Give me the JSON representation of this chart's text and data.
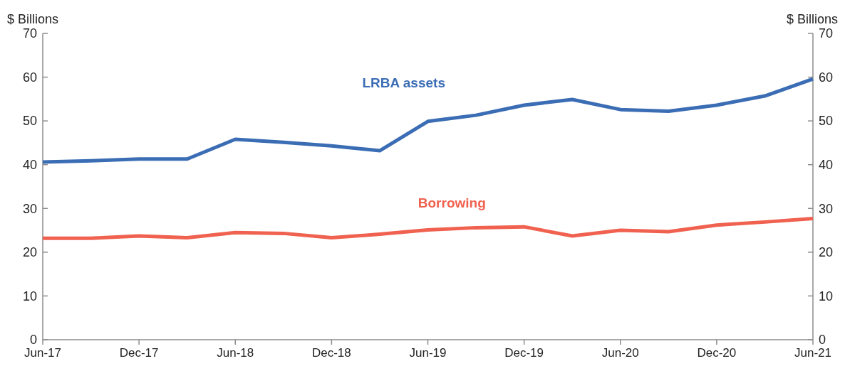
{
  "chart_data": {
    "type": "line",
    "ylabel": "$ Billions",
    "y2label": "$ Billions",
    "categories": [
      "Jun-17",
      null,
      "Dec-17",
      null,
      "Jun-18",
      null,
      "Dec-18",
      null,
      "Jun-19",
      null,
      "Dec-19",
      null,
      "Jun-20",
      null,
      "Dec-20",
      null,
      "Jun-21"
    ],
    "series": [
      {
        "name": "LRBA assets",
        "color": "#3b6db5",
        "values": [
          40.6,
          40.9,
          41.3,
          41.3,
          45.8,
          45.1,
          44.3,
          43.2,
          49.9,
          51.3,
          53.6,
          54.9,
          52.6,
          52.2,
          53.6,
          55.7,
          59.6
        ]
      },
      {
        "name": "Borrowing",
        "color": "#f0614f",
        "values": [
          23.2,
          23.2,
          23.7,
          23.3,
          24.5,
          24.3,
          23.3,
          24.1,
          25.1,
          25.6,
          25.8,
          23.7,
          25.0,
          24.7,
          26.2,
          26.9,
          27.7
        ]
      }
    ],
    "ylim": [
      0,
      70
    ],
    "yticks": [
      0,
      10,
      20,
      30,
      40,
      50,
      60,
      70
    ],
    "y2lim": [
      0,
      70
    ],
    "y2ticks": [
      0,
      10,
      20,
      30,
      40,
      50,
      60,
      70
    ]
  }
}
